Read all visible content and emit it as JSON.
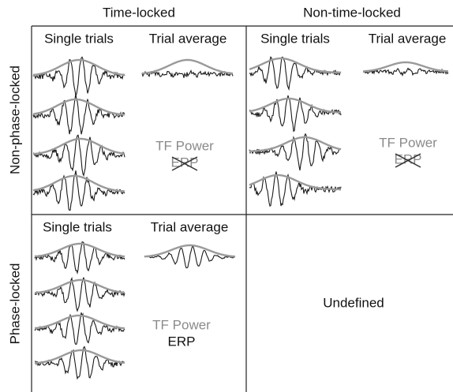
{
  "columns": [
    "Time-locked",
    "Non-time-locked"
  ],
  "rows": [
    "Non-phase-locked",
    "Phase-locked"
  ],
  "cells": [
    {
      "single": "Single trials",
      "average": "Trial average",
      "tf": "TF Power",
      "erp": "ERP"
    },
    {
      "single": "Single trials",
      "average": "Trial average",
      "tf": "TF Power",
      "erp": "ERP"
    },
    {
      "single": "Single trials",
      "average": "Trial average",
      "tf": "TF Power",
      "erp": "ERP"
    },
    {
      "label": "Undefined"
    }
  ]
}
